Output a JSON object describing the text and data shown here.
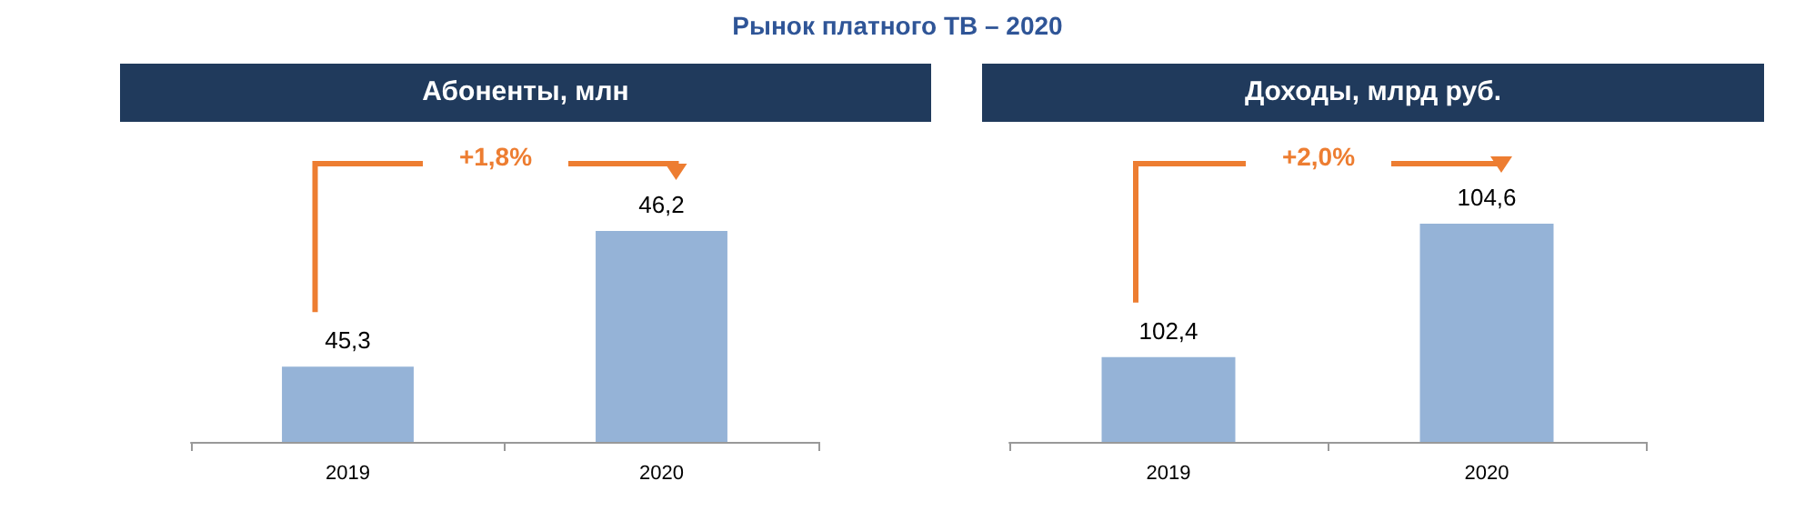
{
  "chart_data": [
    {
      "type": "bar",
      "title": "Рынок платного ТВ – 2020",
      "subtitle": "Абоненты, млн",
      "categories": [
        "2019",
        "2020"
      ],
      "values": [
        45.3,
        46.2
      ],
      "value_labels": [
        "45,3",
        "46,2"
      ],
      "color": "#95b3d7",
      "ylim": [
        44.8,
        46.2
      ],
      "annotations": [
        "+1,8%"
      ]
    },
    {
      "type": "bar",
      "subtitle": "Доходы, млрд руб.",
      "categories": [
        "2019",
        "2020"
      ],
      "values": [
        102.4,
        104.6
      ],
      "value_labels": [
        "102,4",
        "104,6"
      ],
      "color": "#95b3d7",
      "ylim": [
        101,
        104.6
      ],
      "annotations": [
        "+2,0%"
      ]
    }
  ]
}
